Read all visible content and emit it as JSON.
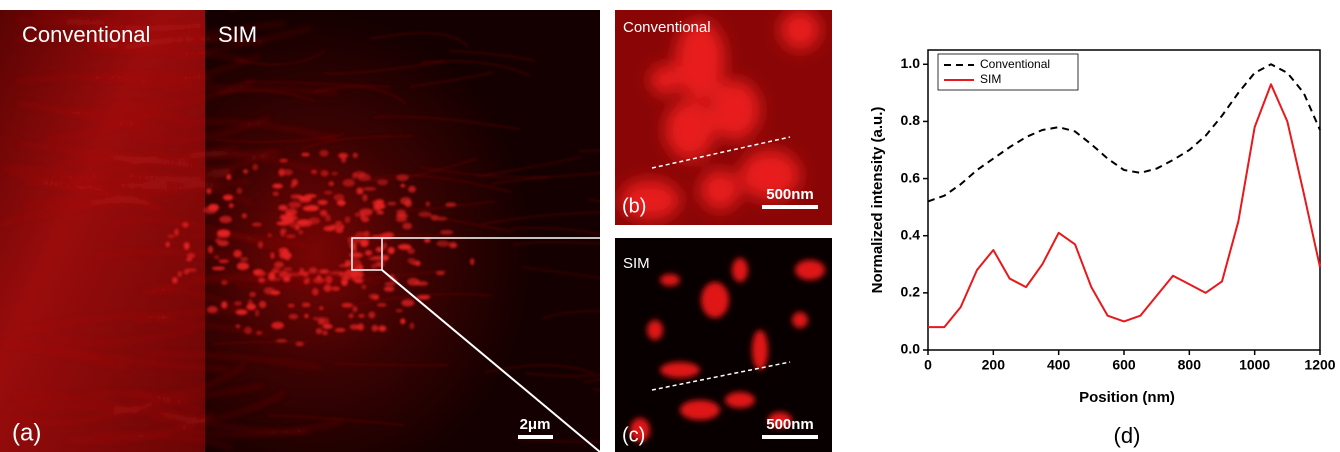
{
  "figure": {
    "a": {
      "left_label": "Conventional",
      "right_label": "SIM",
      "tag": "(a)",
      "scale_bar": "2μm"
    },
    "b": {
      "label": "Conventional",
      "tag": "(b)",
      "scale_bar": "500nm"
    },
    "c": {
      "label": "SIM",
      "tag": "(c)",
      "scale_bar": "500nm"
    }
  },
  "chart_data": {
    "type": "line",
    "panel_label": "(d)",
    "x_label": "Position (nm)",
    "y_label": "Normalized intensity (a.u.)",
    "x": [
      0,
      50,
      100,
      150,
      200,
      250,
      300,
      350,
      400,
      450,
      500,
      550,
      600,
      650,
      700,
      750,
      800,
      850,
      900,
      950,
      1000,
      1050,
      1100,
      1150,
      1200
    ],
    "series": [
      {
        "name": "Conventional",
        "color": "#000000",
        "dash": true,
        "values": [
          0.52,
          0.54,
          0.58,
          0.63,
          0.67,
          0.71,
          0.745,
          0.77,
          0.78,
          0.765,
          0.72,
          0.67,
          0.63,
          0.62,
          0.635,
          0.665,
          0.7,
          0.75,
          0.82,
          0.9,
          0.97,
          1.0,
          0.97,
          0.9,
          0.77
        ]
      },
      {
        "name": "SIM",
        "color": "#e8191c",
        "dash": false,
        "values": [
          0.08,
          0.08,
          0.15,
          0.28,
          0.35,
          0.25,
          0.22,
          0.3,
          0.41,
          0.37,
          0.22,
          0.12,
          0.1,
          0.12,
          0.19,
          0.26,
          0.23,
          0.2,
          0.24,
          0.45,
          0.78,
          0.93,
          0.8,
          0.55,
          0.29
        ]
      }
    ],
    "xlim": [
      0,
      1200
    ],
    "xticks": [
      0,
      200,
      400,
      600,
      800,
      1000,
      1200
    ],
    "ylim": [
      0,
      1.05
    ],
    "yticks": [
      {
        "value": 0,
        "label": "0.0"
      },
      0.2,
      0.4,
      0.6,
      0.8,
      {
        "value": 1,
        "label": "1.0"
      }
    ],
    "legend": "top-left"
  }
}
